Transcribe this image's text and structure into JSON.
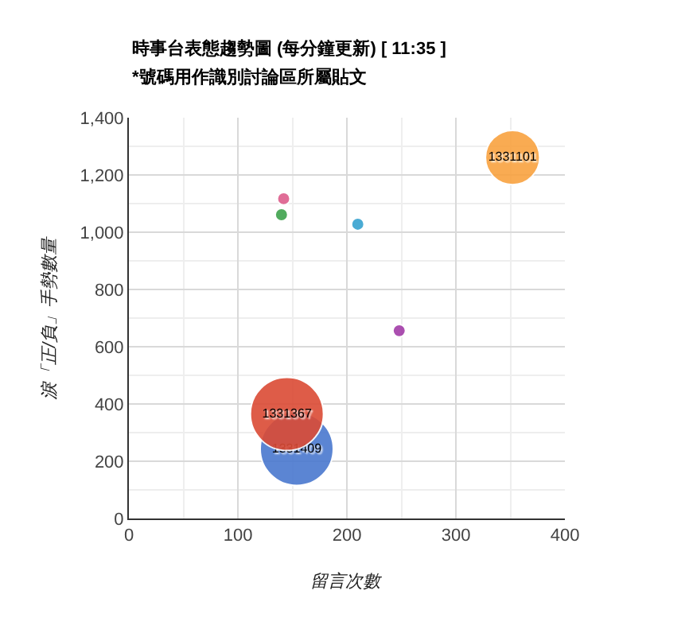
{
  "chart_data": {
    "type": "bubble",
    "title": "時事台表態趨勢圖 (每分鐘更新) [ 11:35 ]",
    "subtitle": "*號碼用作識別討論區所屬貼文",
    "xlabel": "留言次數",
    "ylabel": "淚「正/負」手勢數量",
    "xlim": [
      0,
      400
    ],
    "xticks": [
      0,
      100,
      200,
      300,
      400
    ],
    "ylim": [
      0,
      1400
    ],
    "yticks": [
      {
        "value": 0,
        "label": "0"
      },
      {
        "value": 200,
        "label": "200"
      },
      {
        "value": 400,
        "label": "400"
      },
      {
        "value": 600,
        "label": "600"
      },
      {
        "value": 800,
        "label": "800"
      },
      {
        "value": 1000,
        "label": "1,000"
      },
      {
        "value": 1200,
        "label": "1,200"
      },
      {
        "value": 1400,
        "label": "1,400"
      }
    ],
    "grid": true,
    "legend": false,
    "series": [
      {
        "name": "1331409",
        "color": "#4a78cf",
        "x": [
          154
        ],
        "values": [
          243
        ],
        "sizes": [
          1
        ]
      },
      {
        "name": "1331367",
        "color": "#db4b35",
        "x": [
          145
        ],
        "values": [
          365
        ],
        "sizes": [
          1
        ]
      },
      {
        "name": "1331101",
        "color": "#f9a240",
        "x": [
          352
        ],
        "values": [
          1261
        ],
        "sizes": [
          0.55
        ]
      },
      {
        "color": "#dd5e8c",
        "x": [
          142
        ],
        "values": [
          1117
        ],
        "sizes": [
          0.03
        ]
      },
      {
        "color": "#3fa34d",
        "x": [
          140
        ],
        "values": [
          1061
        ],
        "sizes": [
          0.03
        ]
      },
      {
        "color": "#37a3d0",
        "x": [
          210
        ],
        "values": [
          1028
        ],
        "sizes": [
          0.03
        ]
      },
      {
        "color": "#a23ca8",
        "x": [
          248
        ],
        "values": [
          656
        ],
        "sizes": [
          0.03
        ]
      }
    ]
  }
}
